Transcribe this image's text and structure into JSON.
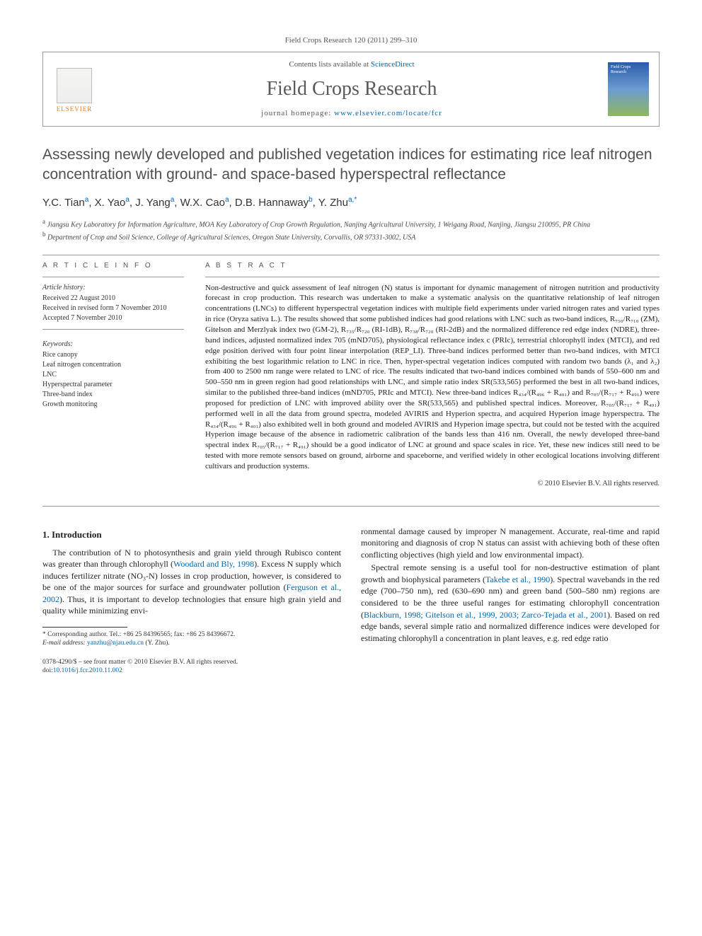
{
  "journal_ref": "Field Crops Research 120 (2011) 299–310",
  "header": {
    "contents_prefix": "Contents lists available at ",
    "contents_link": "ScienceDirect",
    "journal_title": "Field Crops Research",
    "homepage_prefix": "journal homepage: ",
    "homepage_link": "www.elsevier.com/locate/fcr",
    "elsevier_label": "ELSEVIER"
  },
  "title": "Assessing newly developed and published vegetation indices for estimating rice leaf nitrogen concentration with ground- and space-based hyperspectral reflectance",
  "authors_html": "Y.C. Tian<sup>a</sup>, X. Yao<sup>a</sup>, J. Yang<sup>a</sup>, W.X. Cao<sup>a</sup>, D.B. Hannaway<sup>b</sup>, Y. Zhu<sup>a,*</sup>",
  "affiliations": [
    "a Jiangsu Key Laboratory for Information Agriculture, MOA Key Laboratory of Crop Growth Regulation, Nanjing Agricultural University, 1 Weigang Road, Nanjing, Jiangsu 210095, PR China",
    "b Department of Crop and Soil Science, College of Agricultural Sciences, Oregon State University, Corvallis, OR 97331-3002, USA"
  ],
  "article_info": {
    "heading": "A R T I C L E   I N F O",
    "history_label": "Article history:",
    "history": [
      "Received 22 August 2010",
      "Received in revised form 7 November 2010",
      "Accepted 7 November 2010"
    ],
    "keywords_label": "Keywords:",
    "keywords": [
      "Rice canopy",
      "Leaf nitrogen concentration",
      "LNC",
      "Hyperspectral parameter",
      "Three-band index",
      "Growth monitoring"
    ]
  },
  "abstract": {
    "heading": "A B S T R A C T",
    "text": "Non-destructive and quick assessment of leaf nitrogen (N) status is important for dynamic management of nitrogen nutrition and productivity forecast in crop production. This research was undertaken to make a systematic analysis on the quantitative relationship of leaf nitrogen concentrations (LNCs) to different hyperspectral vegetation indices with multiple field experiments under varied nitrogen rates and varied types in rice (Oryza sativa L.). The results showed that some published indices had good relations with LNC such as two-band indices, R₇₅₀/R₇₁₀ (ZM), Gitelson and Merzlyak index two (GM-2), R₇₃₅/R₇₂₀ (RI-1dB), R₇₃₈/R₇₂₀ (RI-2dB) and the normalized difference red edge index (NDRE), three-band indices, adjusted normalized index 705 (mND705), physiological reflectance index c (PRIc), terrestrial chlorophyll index (MTCI), and red edge position derived with four point linear interpolation (REP_LI). Three-band indices performed better than two-band indices, with MTCI exhibiting the best logarithmic relation to LNC in rice. Then, hyper-spectral vegetation indices computed with random two bands (λ₁ and λ₂) from 400 to 2500 nm range were related to LNC of rice. The results indicated that two-band indices combined with bands of 550–600 nm and 500–550 nm in green region had good relationships with LNC, and simple ratio index SR(533,565) performed the best in all two-band indices, similar to the published three-band indices (mND705, PRIc and MTCI). New three-band indices R₄₃₄/(R₄₉₆ + R₄₀₁) and R₇₀₅/(R₇₁₇ + R₄₉₁) were proposed for prediction of LNC with improved ability over the SR(533,565) and published spectral indices. Moreover, R₇₀₅/(R₇₁₇ + R₄₉₁) performed well in all the data from ground spectra, modeled AVIRIS and Hyperion spectra, and acquired Hyperion image hyperspectra. The R₄₃₄/(R₄₉₆ + R₄₀₁) also exhibited well in both ground and modeled AVIRIS and Hyperion image spectra, but could not be tested with the acquired Hyperion image because of the absence in radiometric calibration of the bands less than 416 nm. Overall, the newly developed three-band spectral index R₇₀₅/(R₇₁₇ + R₄₉₁) should be a good indicator of LNC at ground and space scales in rice. Yet, these new indices still need to be tested with more remote sensors based on ground, airborne and spaceborne, and verified widely in other ecological locations involving different cultivars and production systems.",
    "copyright": "© 2010 Elsevier B.V. All rights reserved."
  },
  "section1": {
    "heading": "1.  Introduction",
    "para1_pre": "The contribution of N to photosynthesis and grain yield through Rubisco content was greater than through chlorophyll (",
    "ref1": "Woodard and Bly, 1998",
    "para1_mid": "). Excess N supply which induces fertilizer nitrate (NO₃-N) losses in crop production, however, is considered to be one of the major sources for surface and groundwater pollution (",
    "ref2": "Ferguson et al., 2002",
    "para1_post": "). Thus, it is important to develop technologies that ensure high grain yield and quality while minimizing envi-",
    "para2": "ronmental damage caused by improper N management. Accurate, real-time and rapid monitoring and diagnosis of crop N status can assist with achieving both of these often conflicting objectives (high yield and low environmental impact).",
    "para3_pre": "Spectral remote sensing is a useful tool for non-destructive estimation of plant growth and biophysical parameters (",
    "ref3": "Takebe et al., 1990",
    "para3_mid": "). Spectral wavebands in the red edge (700–750 nm), red (630–690 nm) and green band (500–580 nm) regions are considered to be the three useful ranges for estimating chlorophyll concentration (",
    "ref4": "Blackburn, 1998; Gitelson et al., 1999, 2003; Zarco-Tejada et al., 2001",
    "para3_post": "). Based on red edge bands, several simple ratio and normalized difference indices were developed for estimating chlorophyll a concentration in plant leaves, e.g. red edge ratio"
  },
  "footnotes": {
    "corr": "* Corresponding author. Tel.: +86 25 84396565; fax: +86 25 84396672.",
    "email_label": "E-mail address: ",
    "email": "yanzhu@njau.edu.cn",
    "email_suffix": " (Y. Zhu)."
  },
  "footer": {
    "line1": "0378-4290/$ – see front matter © 2010 Elsevier B.V. All rights reserved.",
    "doi_label": "doi:",
    "doi": "10.1016/j.fcr.2010.11.002"
  },
  "colors": {
    "link": "#0066aa",
    "elsevier_orange": "#e67817",
    "heading_gray": "#505050"
  }
}
